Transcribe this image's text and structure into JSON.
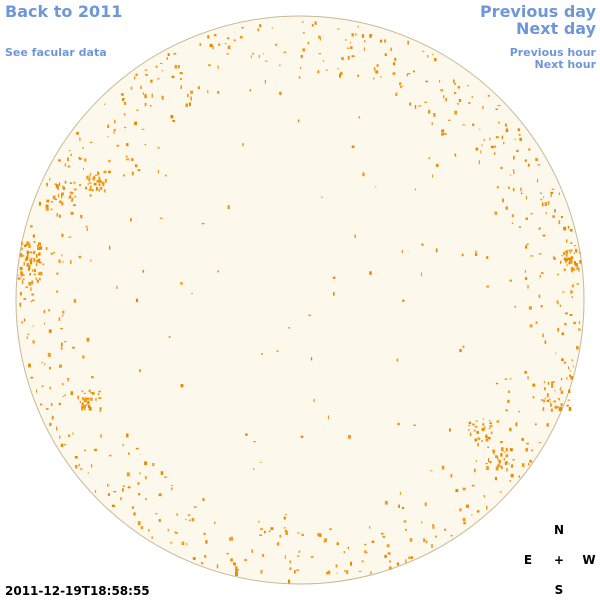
{
  "header": {
    "back_link": "Back to 2011",
    "facular_link": "See facular data",
    "previous_day": "Previous day",
    "next_day": "Next day",
    "previous_hour": "Previous hour",
    "next_hour": "Next hour"
  },
  "timestamp": "2011-12-19T18:58:55",
  "compass": {
    "north": "N",
    "east": "E",
    "center": "+",
    "west": "W",
    "south": "S"
  }
}
